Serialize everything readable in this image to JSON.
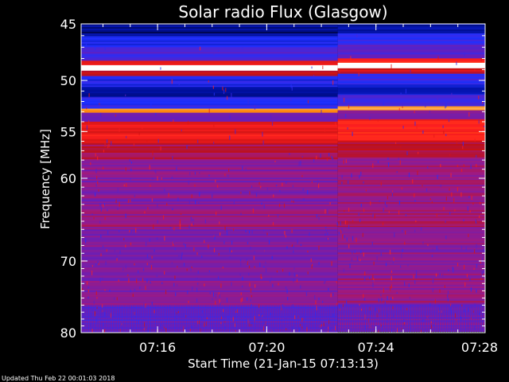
{
  "chart_data": {
    "type": "heatmap",
    "title": "Solar radio Flux (Glasgow)",
    "xlabel": "Start Time (21-Jan-15 07:13:13)",
    "ylabel": "Frequency [MHz]",
    "x_range_minutes": [
      13.2,
      28.0
    ],
    "x_ticks": [
      {
        "minute": 16,
        "label": "07:16"
      },
      {
        "minute": 20,
        "label": "07:20"
      },
      {
        "minute": 24,
        "label": "07:24"
      },
      {
        "minute": 28,
        "label": "07:28"
      }
    ],
    "y_scale": "log",
    "y_range_mhz": [
      45,
      80
    ],
    "y_ticks": [
      {
        "value": 45,
        "label": "45"
      },
      {
        "value": 50,
        "label": "50"
      },
      {
        "value": 55,
        "label": "55"
      },
      {
        "value": 60,
        "label": "60"
      },
      {
        "value": 70,
        "label": "70"
      },
      {
        "value": 80,
        "label": "80"
      }
    ],
    "colormap": [
      "#000020",
      "#0010a0",
      "#2030ff",
      "#6020c0",
      "#a01a80",
      "#c01010",
      "#ff2020",
      "#ff8000",
      "#ffe0a0",
      "#ffffff"
    ],
    "bands": [
      {
        "from_mhz": 45.0,
        "to_mhz": 46.0,
        "level": 0.08
      },
      {
        "from_mhz": 46.0,
        "to_mhz": 47.0,
        "level": 0.2
      },
      {
        "from_mhz": 47.0,
        "to_mhz": 48.2,
        "level": 0.3
      },
      {
        "from_mhz": 48.2,
        "to_mhz": 48.6,
        "level": 0.62
      },
      {
        "from_mhz": 48.6,
        "to_mhz": 49.1,
        "level": 0.98
      },
      {
        "from_mhz": 49.1,
        "to_mhz": 49.6,
        "level": 0.55
      },
      {
        "from_mhz": 49.6,
        "to_mhz": 50.6,
        "level": 0.22
      },
      {
        "from_mhz": 50.6,
        "to_mhz": 51.6,
        "level": 0.12
      },
      {
        "from_mhz": 51.6,
        "to_mhz": 52.7,
        "level": 0.25
      },
      {
        "from_mhz": 52.7,
        "to_mhz": 53.1,
        "level": 0.8
      },
      {
        "from_mhz": 53.1,
        "to_mhz": 54.0,
        "level": 0.35
      },
      {
        "from_mhz": 54.0,
        "to_mhz": 56.2,
        "level": 0.62
      },
      {
        "from_mhz": 56.2,
        "to_mhz": 58.0,
        "level": 0.5
      },
      {
        "from_mhz": 58.0,
        "to_mhz": 63.0,
        "level": 0.4
      },
      {
        "from_mhz": 63.0,
        "to_mhz": 66.0,
        "level": 0.44
      },
      {
        "from_mhz": 66.0,
        "to_mhz": 72.0,
        "level": 0.38
      },
      {
        "from_mhz": 72.0,
        "to_mhz": 76.0,
        "level": 0.4
      },
      {
        "from_mhz": 76.0,
        "to_mhz": 80.0,
        "level": 0.34
      }
    ],
    "step_shift_minute": 22.6,
    "grid": false
  },
  "footer": {
    "updated": "Updated Thu Feb 22 00:01:03 2018"
  }
}
